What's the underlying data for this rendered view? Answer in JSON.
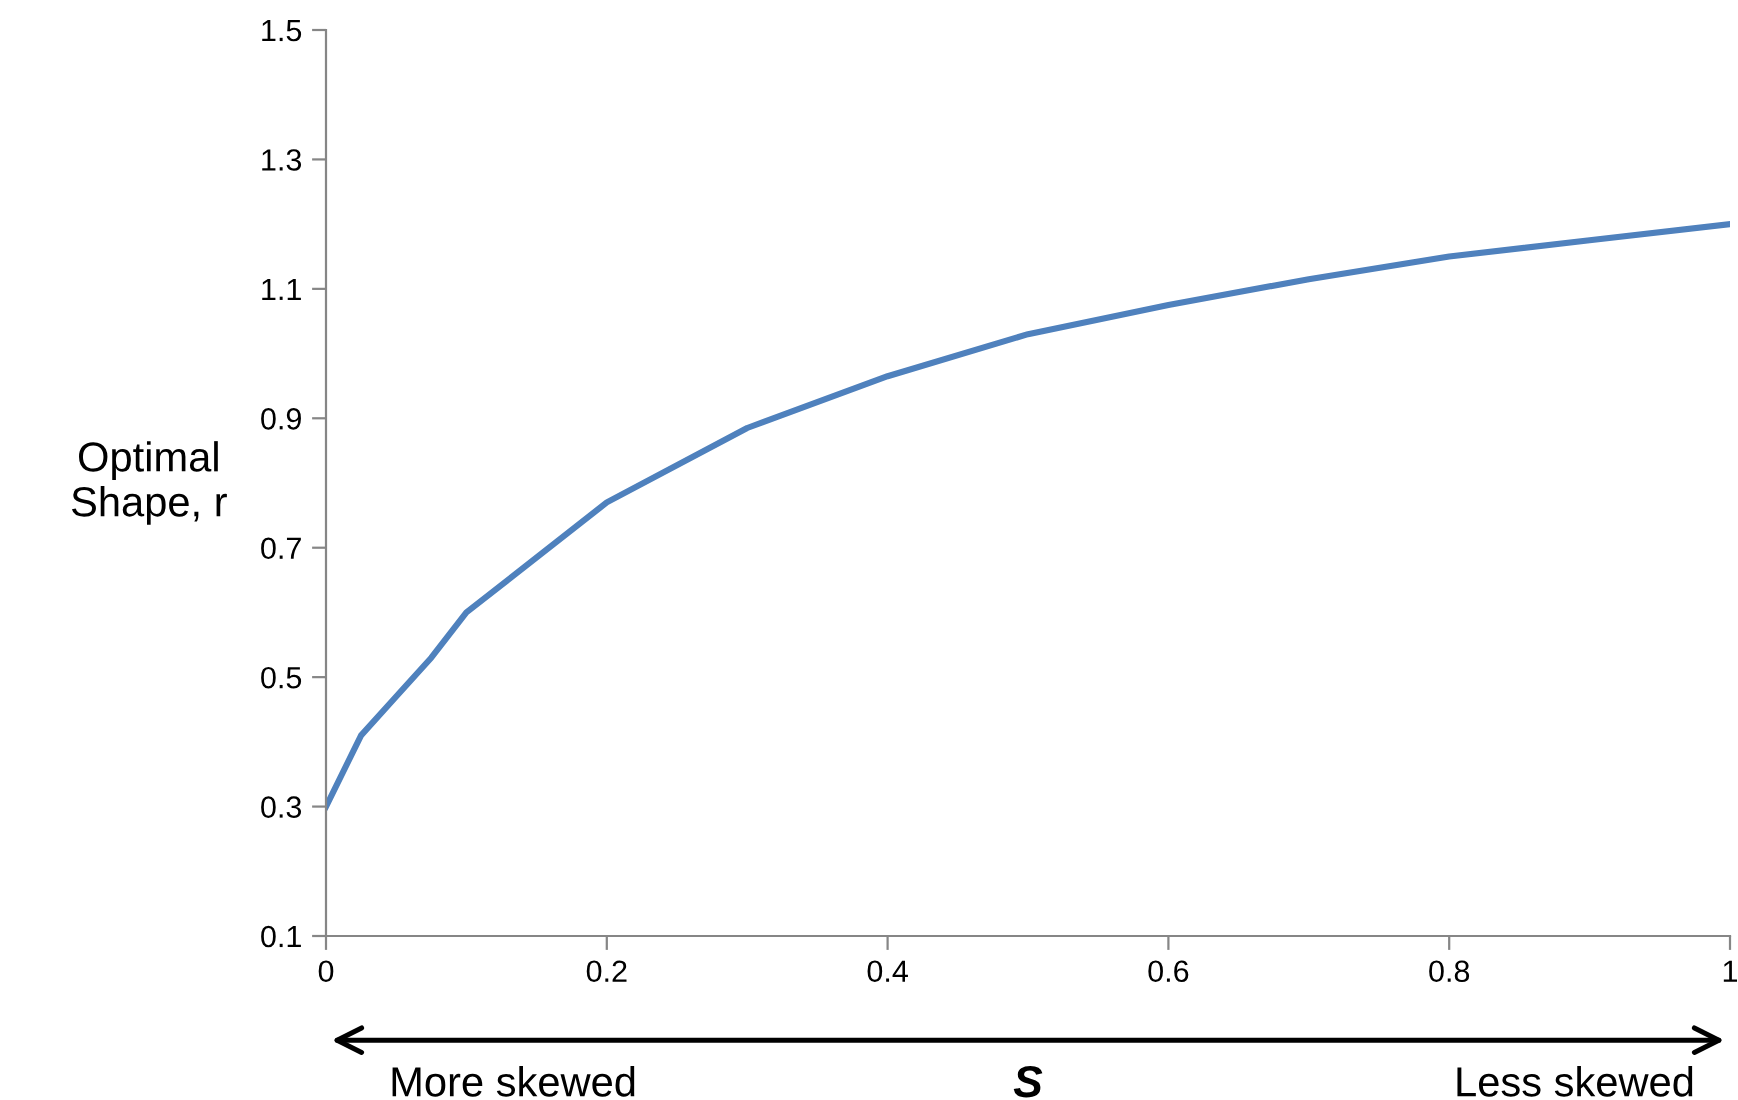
{
  "chart_data": {
    "type": "line",
    "xlabel": "S",
    "ylabel": "Optimal\nShape, r",
    "x": [
      0,
      0.025,
      0.05,
      0.075,
      0.1,
      0.2,
      0.3,
      0.4,
      0.5,
      0.6,
      0.7,
      0.8,
      0.9,
      1
    ],
    "series": [
      {
        "color": "#4f81bd",
        "values": [
          0.3,
          0.41,
          0.47,
          0.53,
          0.6,
          0.77,
          0.885,
          0.965,
          1.03,
          1.075,
          1.115,
          1.15,
          1.175,
          1.2
        ]
      }
    ],
    "xlim": [
      0,
      1
    ],
    "xticks": [
      0,
      0.2,
      0.4,
      0.6,
      0.8,
      1
    ],
    "ylim": [
      0.1,
      1.5
    ],
    "yticks": [
      0.1,
      0.3,
      0.5,
      0.7,
      0.9,
      1.1,
      1.3,
      1.5
    ],
    "grid": false,
    "legend": false,
    "marker": "none",
    "line_style": "solid",
    "annotations": [
      "More skewed",
      "Less skewed"
    ]
  }
}
